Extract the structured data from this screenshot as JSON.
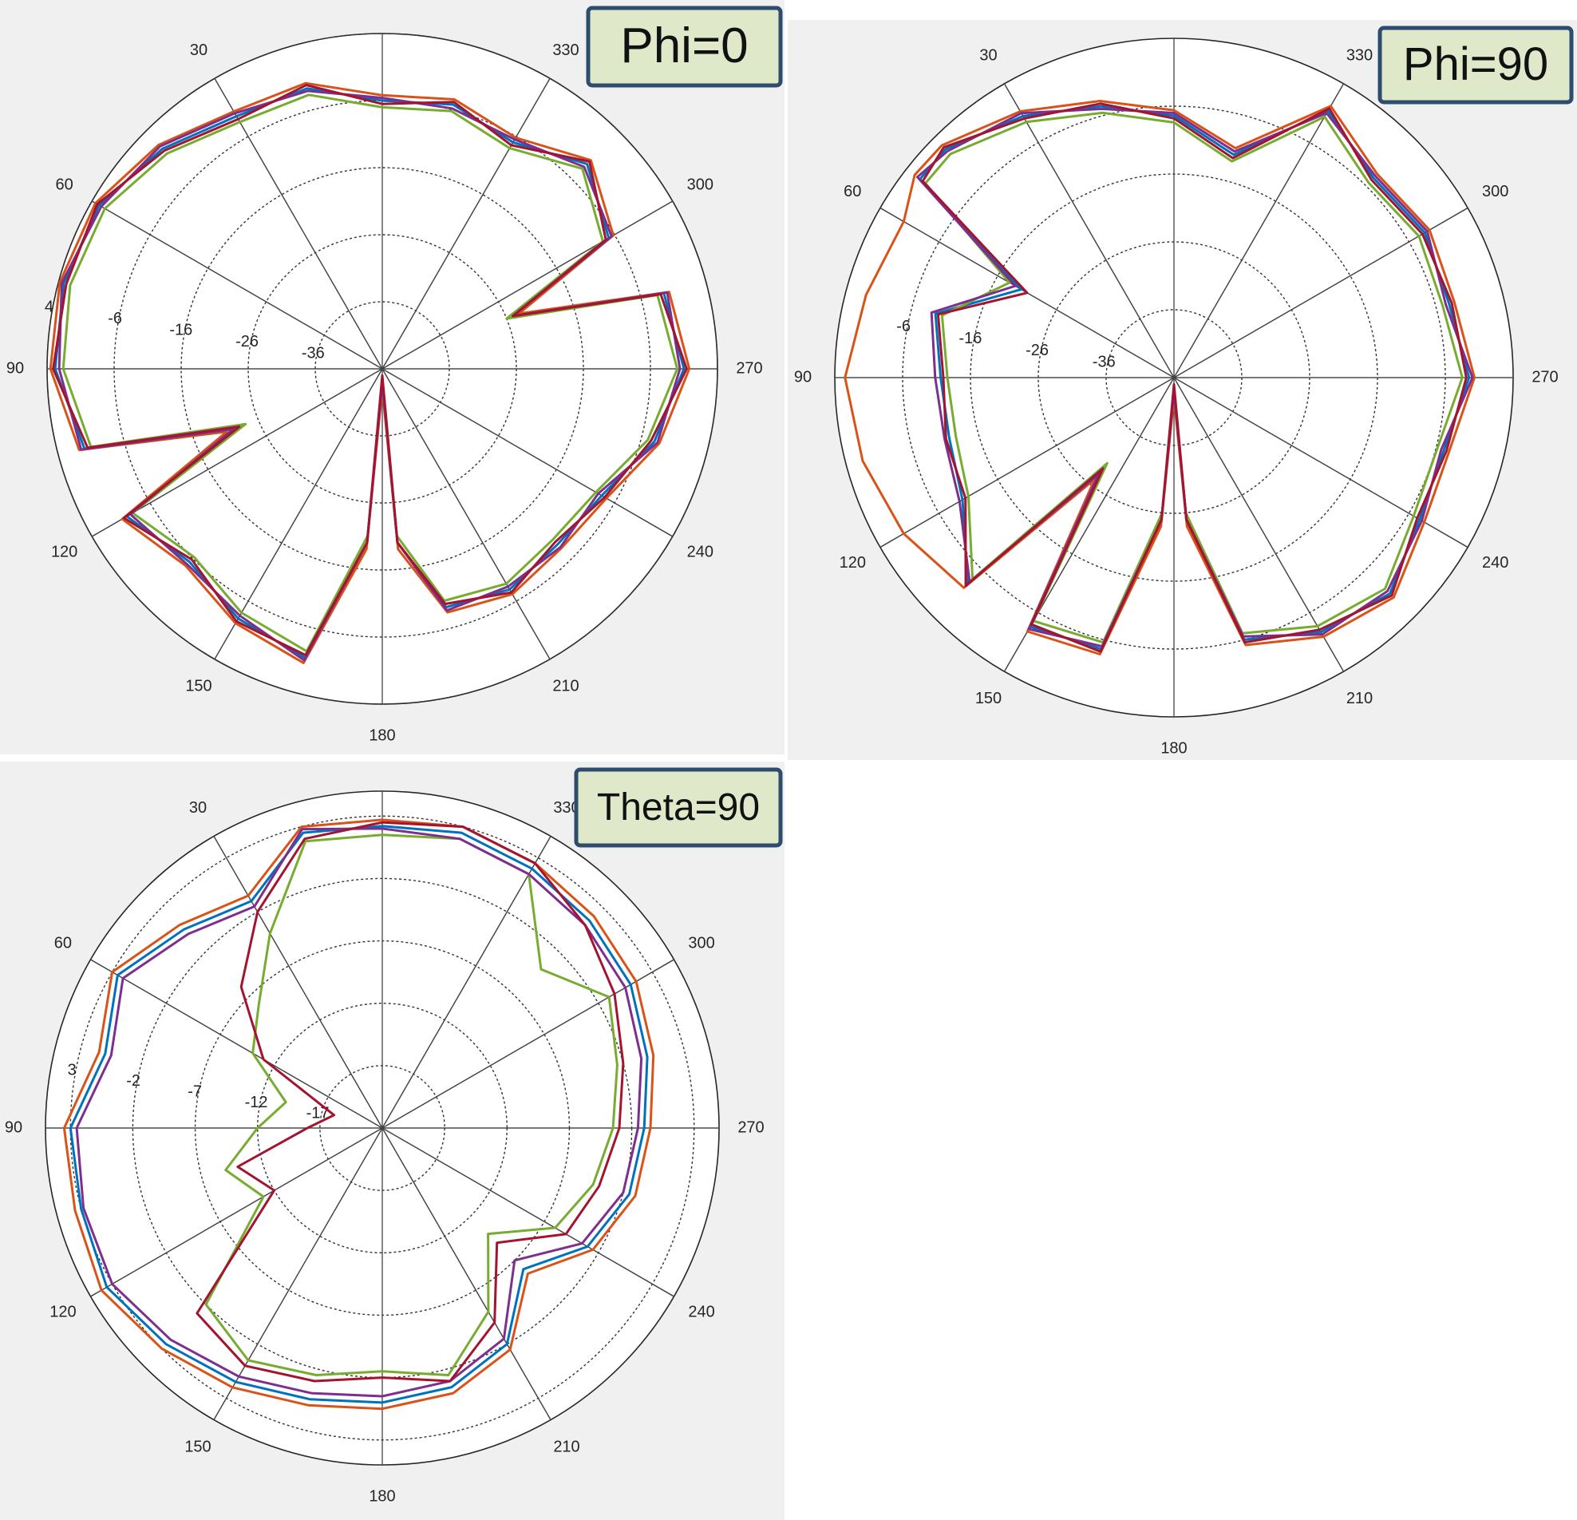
{
  "chart_data": [
    {
      "type": "polar",
      "title": "Phi=0",
      "theta_zero": "top",
      "theta_direction": "counterclockwise",
      "rlim": [
        -46,
        4
      ],
      "rticks": [
        -36,
        -26,
        -16,
        -6,
        4
      ],
      "thetaticks": [
        30,
        60,
        90,
        120,
        150,
        180,
        210,
        240,
        270,
        300,
        330
      ],
      "theta": [
        0,
        15,
        30,
        45,
        60,
        75,
        90,
        105,
        112,
        120,
        135,
        150,
        165,
        175,
        180,
        185,
        195,
        210,
        225,
        240,
        255,
        270,
        285,
        292,
        300,
        315,
        330,
        345
      ],
      "series": [
        {
          "color": "#0072bd",
          "values": [
            -6,
            -2.7,
            -2.5,
            0.4,
            2.8,
            3.2,
            2.8,
            0,
            -23,
            -2,
            -5.3,
            -3,
            -1.4,
            -20,
            -44,
            -20,
            -9.2,
            -8,
            -9,
            -8.2,
            -4,
            -1,
            -2.5,
            -25,
            -7,
            -2.8,
            -7,
            -5.2
          ]
        },
        {
          "color": "#d95319",
          "values": [
            -5.2,
            -1.9,
            -1.7,
            1.2,
            3.4,
            3.8,
            3.5,
            0.8,
            -21,
            -1.2,
            -4.5,
            -2.2,
            -0.6,
            -19,
            -43,
            -19,
            -8.4,
            -7.2,
            -8.2,
            -7.4,
            -3.2,
            -0.2,
            -1.7,
            -24,
            -6.2,
            -2,
            -6.2,
            -4.4
          ]
        },
        {
          "color": "#77ac30",
          "values": [
            -7,
            -3.7,
            -3.5,
            -0.6,
            1.8,
            2.2,
            1.6,
            -1,
            -24,
            -3,
            -6.3,
            -4,
            -2.4,
            -21,
            -44,
            -21,
            -10.2,
            -9,
            -10,
            -9.2,
            -5,
            -2,
            -3.5,
            -26,
            -8,
            -3.8,
            -8,
            -6.2
          ]
        },
        {
          "color": "#7e2f8e",
          "values": [
            -5.6,
            -3.1,
            -2,
            0.9,
            2.4,
            3.5,
            2.2,
            0.5,
            -22,
            -2.6,
            -4.8,
            -3.5,
            -1,
            -20,
            -44,
            -20,
            -8.7,
            -8.5,
            -8.4,
            -8.8,
            -3.5,
            -1.6,
            -2,
            -25,
            -6.5,
            -3.4,
            -6.5,
            -5.8
          ]
        },
        {
          "color": "#a2142f",
          "values": [
            -6.5,
            -2.2,
            -3,
            0,
            3.1,
            2.8,
            3.1,
            -0.5,
            -23,
            -1.5,
            -5.8,
            -2.5,
            -1.8,
            -20,
            -45,
            -20,
            -9.7,
            -7.5,
            -9.5,
            -7.7,
            -4.5,
            -0.6,
            -3,
            -25,
            -7.5,
            -2.3,
            -7.5,
            -4.8
          ]
        }
      ]
    },
    {
      "type": "polar",
      "title": "Phi=90",
      "theta_zero": "top",
      "theta_direction": "counterclockwise",
      "rlim": [
        -46,
        4
      ],
      "rticks": [
        -36,
        -26,
        -16,
        -6
      ],
      "thetaticks": [
        30,
        60,
        90,
        120,
        150,
        180,
        210,
        240,
        270,
        300,
        330
      ],
      "theta": [
        0,
        15,
        30,
        45,
        52,
        60,
        75,
        90,
        105,
        120,
        135,
        142,
        150,
        165,
        175,
        180,
        185,
        195,
        210,
        225,
        240,
        255,
        270,
        285,
        300,
        315,
        330,
        345
      ],
      "series": [
        {
          "color": "#0072bd",
          "values": [
            -7.4,
            -4.6,
            -1.5,
            1.6,
            1.5,
            -20,
            -9.6,
            -11.6,
            -11.7,
            -10,
            -3,
            -29,
            -3.6,
            -4.6,
            -25,
            -44,
            -25,
            -6,
            -2.7,
            -1,
            -4.2,
            -4.8,
            -2.5,
            -4,
            -3.3,
            -4.4,
            -0.6,
            -12
          ]
        },
        {
          "color": "#d95319",
          "values": [
            -6.6,
            -3.8,
            -0.7,
            2.4,
            2.5,
            0,
            1,
            2.5,
            1.5,
            0,
            -2.2,
            -27,
            -2.8,
            -3.8,
            -24,
            -43,
            -24,
            -5.2,
            -1.9,
            -0.2,
            -3.4,
            -4,
            -1.7,
            -3.2,
            -2.5,
            -3.6,
            0.2,
            -11
          ]
        },
        {
          "color": "#77ac30",
          "values": [
            -8.4,
            -5.6,
            -2.5,
            0.6,
            0.5,
            -18,
            -10.6,
            -12.6,
            -12.7,
            -11,
            -4,
            -30,
            -4.6,
            -5.6,
            -26,
            -44,
            -26,
            -7,
            -3.7,
            -2,
            -5.2,
            -5.8,
            -3.5,
            -5,
            -4.3,
            -5.4,
            -1.6,
            -13
          ]
        },
        {
          "color": "#7e2f8e",
          "values": [
            -7,
            -5,
            -1,
            1.2,
            2,
            -19,
            -9,
            -10.8,
            -11,
            -9.5,
            -3.4,
            -28,
            -3.2,
            -5,
            -25,
            -44,
            -25,
            -6.5,
            -2.3,
            -1.5,
            -3.8,
            -5.2,
            -2,
            -4.5,
            -2.9,
            -4,
            -1,
            -11.5
          ]
        },
        {
          "color": "#a2142f",
          "values": [
            -7.8,
            -4.2,
            -1.9,
            2,
            1,
            -21,
            -10,
            -12,
            -11.2,
            -10.5,
            -2.6,
            -29,
            -4,
            -4.2,
            -25,
            -45,
            -25,
            -5.6,
            -3.1,
            -0.6,
            -4.6,
            -4.4,
            -2.9,
            -3.6,
            -3.7,
            -4.8,
            -0.2,
            -12.5
          ]
        }
      ]
    },
    {
      "type": "polar",
      "title": "Theta=90",
      "theta_zero": "top",
      "theta_direction": "counterclockwise",
      "rlim": [
        -22,
        5
      ],
      "rticks": [
        -17,
        -12,
        -7,
        -2,
        3
      ],
      "thetaticks": [
        30,
        60,
        90,
        120,
        150,
        180,
        210,
        240,
        270,
        300,
        330
      ],
      "theta": [
        0,
        15,
        30,
        45,
        60,
        75,
        90,
        105,
        120,
        135,
        150,
        165,
        180,
        195,
        210,
        225,
        240,
        255,
        270,
        285,
        300,
        315,
        330,
        345
      ],
      "series": [
        {
          "color": "#0072bd",
          "values": [
            2.2,
            2.5,
            -1,
            0.5,
            2.5,
            1,
            3,
            3,
            3.5,
            2.5,
            1.5,
            0.5,
            0,
            -0.5,
            -2,
            -6,
            -3,
            -1.5,
            -1,
            0,
            1,
            1.5,
            2,
            2.5
          ]
        },
        {
          "color": "#d95319",
          "values": [
            2.7,
            3,
            -0.5,
            1,
            3,
            1.5,
            3.5,
            3.5,
            4,
            3,
            2,
            1,
            0.5,
            0,
            -1.5,
            -5.5,
            -2.5,
            -1,
            -0.5,
            0.5,
            1.5,
            2,
            2.5,
            3
          ]
        },
        {
          "color": "#77ac30",
          "values": [
            1.5,
            1.8,
            -4,
            -8,
            -10,
            -14,
            -12,
            -9,
            -11,
            -2,
            -0.5,
            -1.5,
            -2.5,
            -1.5,
            -5,
            -10,
            -6,
            -4.5,
            -3.5,
            -2.5,
            -1,
            -4,
            1.5,
            2
          ]
        },
        {
          "color": "#7e2f8e",
          "values": [
            2,
            2.8,
            -1.5,
            0,
            2,
            0.5,
            2.5,
            2.8,
            3,
            2,
            1,
            0,
            -0.5,
            -1,
            -2.5,
            -7,
            -3.5,
            -2,
            -1.5,
            -0.5,
            0.5,
            1,
            1.5,
            2
          ]
        },
        {
          "color": "#a2142f",
          "values": [
            2.5,
            2,
            -2,
            -6,
            -11,
            -18,
            -16,
            -10,
            -12,
            -1,
            0,
            -1,
            -2,
            -1,
            -4,
            -9,
            -5,
            -4,
            -3,
            -2,
            -0.5,
            1,
            2.5,
            3
          ]
        }
      ]
    }
  ]
}
